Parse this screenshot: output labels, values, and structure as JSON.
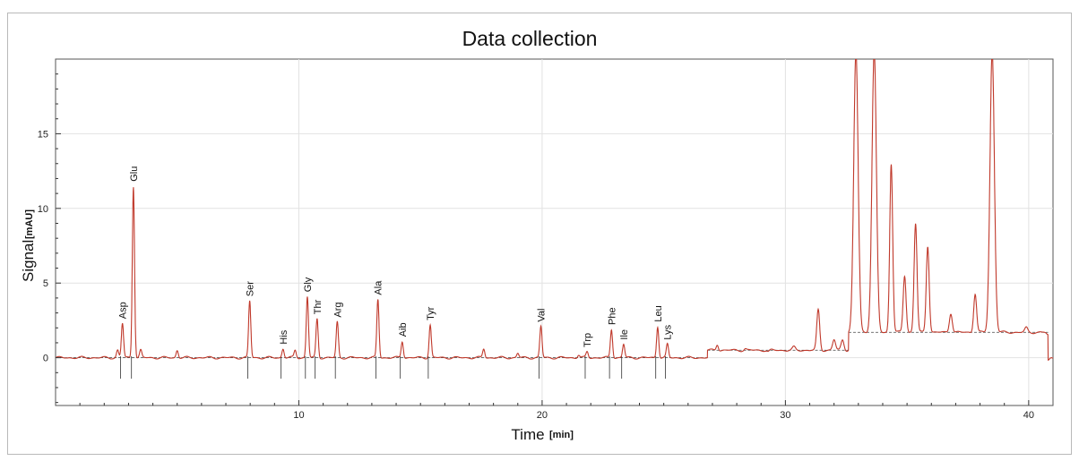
{
  "chart_data": {
    "type": "line",
    "title": "Data collection",
    "xlabel": "Time",
    "xlabel_unit": "[min]",
    "ylabel": "Signal",
    "ylabel_unit": "[mAU]",
    "xlim": [
      0,
      41
    ],
    "ylim": [
      -3.2,
      20
    ],
    "xticks": [
      10,
      20,
      30,
      40
    ],
    "yticks": [
      0,
      5,
      10,
      15
    ],
    "grid": true,
    "colors": {
      "trace": "#c0392b",
      "baseline": "#444444",
      "grid": "#e2e2e2"
    },
    "peaks": [
      {
        "label": "Asp",
        "x": 2.75,
        "y": 2.3
      },
      {
        "label": "Glu",
        "x": 3.2,
        "y": 11.5
      },
      {
        "label": "Ser",
        "x": 7.98,
        "y": 3.8
      },
      {
        "label": "His",
        "x": 9.35,
        "y": 0.6
      },
      {
        "label": "Gly",
        "x": 10.35,
        "y": 4.1
      },
      {
        "label": "Thr",
        "x": 10.75,
        "y": 2.6
      },
      {
        "label": "Arg",
        "x": 11.58,
        "y": 2.4
      },
      {
        "label": "Ala",
        "x": 13.25,
        "y": 3.9
      },
      {
        "label": "Aib",
        "x": 14.25,
        "y": 1.1
      },
      {
        "label": "Tyr",
        "x": 15.4,
        "y": 2.2
      },
      {
        "label": "Val",
        "x": 19.95,
        "y": 2.1
      },
      {
        "label": "Trp",
        "x": 21.85,
        "y": 0.4
      },
      {
        "label": "Phe",
        "x": 22.85,
        "y": 1.9
      },
      {
        "label": "Ile",
        "x": 23.35,
        "y": 0.9
      },
      {
        "label": "Leu",
        "x": 24.75,
        "y": 2.1
      },
      {
        "label": "Lys",
        "x": 25.15,
        "y": 0.9
      }
    ],
    "minor_peaks": [
      {
        "x": 2.55,
        "y": 0.5
      },
      {
        "x": 3.5,
        "y": 0.5
      },
      {
        "x": 5.0,
        "y": 0.5
      },
      {
        "x": 9.85,
        "y": 0.5
      },
      {
        "x": 17.6,
        "y": 0.6
      },
      {
        "x": 19.0,
        "y": 0.3
      },
      {
        "x": 21.5,
        "y": 0.2
      },
      {
        "x": 27.2,
        "y": 0.9
      },
      {
        "x": 28.35,
        "y": 0.6
      },
      {
        "x": 29.3,
        "y": 0.4
      },
      {
        "x": 30.35,
        "y": 0.7
      },
      {
        "x": 31.35,
        "y": 3.2
      },
      {
        "x": 32.0,
        "y": 1.2
      },
      {
        "x": 32.35,
        "y": 1.2
      },
      {
        "x": 32.9,
        "y": 20.5
      },
      {
        "x": 33.65,
        "y": 20.5
      },
      {
        "x": 34.35,
        "y": 13.0
      },
      {
        "x": 34.9,
        "y": 5.5
      },
      {
        "x": 35.35,
        "y": 9.0
      },
      {
        "x": 35.85,
        "y": 7.5
      },
      {
        "x": 36.8,
        "y": 3.0
      },
      {
        "x": 37.8,
        "y": 4.3
      },
      {
        "x": 38.5,
        "y": 20.5
      },
      {
        "x": 39.9,
        "y": 2.0
      },
      {
        "x": 40.8,
        "y": 1.5
      }
    ],
    "segments": [
      {
        "from": 0,
        "to": 26.8,
        "level": 0.0
      },
      {
        "from": 26.8,
        "to": 32.6,
        "level": 0.5
      },
      {
        "from": 32.6,
        "to": 40.8,
        "level": 1.7
      }
    ]
  }
}
